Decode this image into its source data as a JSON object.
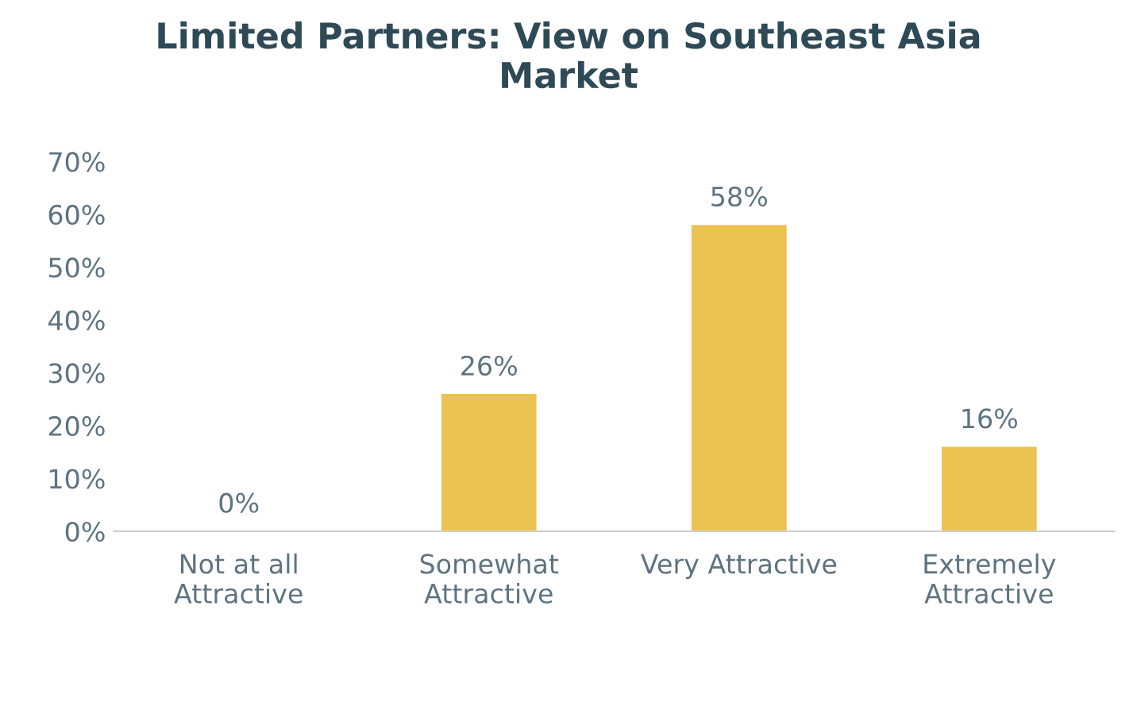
{
  "chart_data": {
    "type": "bar",
    "title": "Limited Partners: View on Southeast Asia\nMarket",
    "categories": [
      "Not at all\nAttractive",
      "Somewhat\nAttractive",
      "Very Attractive",
      "Extremely\nAttractive"
    ],
    "values": [
      0,
      26,
      58,
      16
    ],
    "color": "#ebc352",
    "value_labels": [
      "0%",
      "26%",
      "58%",
      "16%"
    ],
    "ylim": [
      0,
      70
    ],
    "yticks": [
      {
        "value": 0,
        "label": "0%"
      },
      {
        "value": 10,
        "label": "10%"
      },
      {
        "value": 20,
        "label": "20%"
      },
      {
        "value": 30,
        "label": "30%"
      },
      {
        "value": 40,
        "label": "40%"
      },
      {
        "value": 50,
        "label": "50%"
      },
      {
        "value": 60,
        "label": "60%"
      },
      {
        "value": 70,
        "label": "70%"
      }
    ],
    "grid": false,
    "legend": false
  }
}
